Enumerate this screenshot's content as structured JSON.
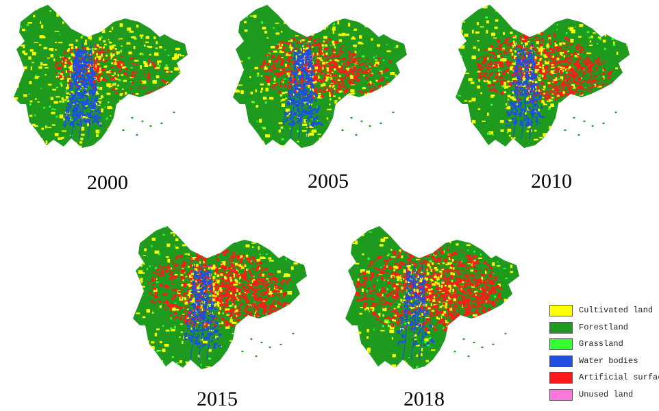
{
  "colors": {
    "cultivated": "#ffff00",
    "forest": "#1e9a1e",
    "grass": "#33ff33",
    "water": "#1f4fe0",
    "artificial": "#ff1a1a",
    "unused": "#ff77dd"
  },
  "panels": [
    {
      "year": "2000",
      "artificial": 0.25,
      "water": 0.9,
      "cultivated": 0.75
    },
    {
      "year": "2005",
      "artificial": 0.55,
      "water": 0.7,
      "cultivated": 0.7
    },
    {
      "year": "2010",
      "artificial": 0.7,
      "water": 0.55,
      "cultivated": 0.65
    },
    {
      "year": "2015",
      "artificial": 0.85,
      "water": 0.5,
      "cultivated": 0.6
    },
    {
      "year": "2018",
      "artificial": 1.0,
      "water": 0.35,
      "cultivated": 0.55
    }
  ],
  "legend": {
    "items": [
      {
        "label": "Cultivated land",
        "color": "#ffff00"
      },
      {
        "label": "Forestland",
        "color": "#1e9a1e"
      },
      {
        "label": "Grassland",
        "color": "#33ff33"
      },
      {
        "label": "Water bodies",
        "color": "#1f4fe0"
      },
      {
        "label": "Artificial surface",
        "color": "#ff1a1a"
      },
      {
        "label": "Unused land",
        "color": "#ff77dd"
      }
    ]
  }
}
